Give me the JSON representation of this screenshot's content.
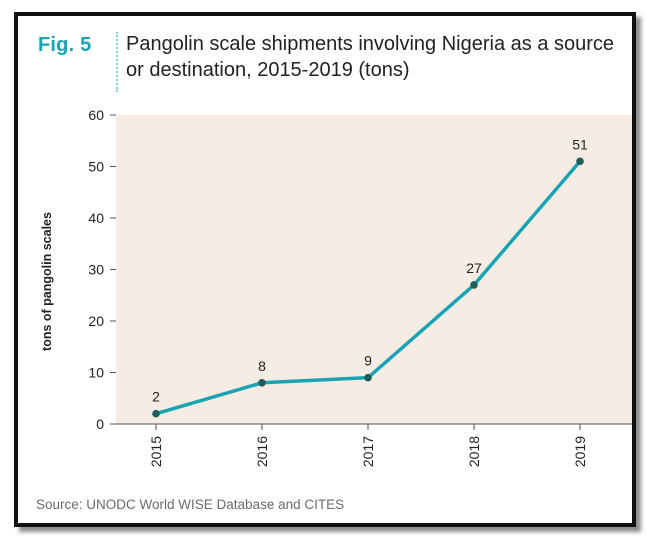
{
  "figure": {
    "label": "Fig. 5",
    "title_line1": "Pangolin scale shipments involving Nigeria as a source",
    "title_line2": "or destination, 2015-2019 (tons)",
    "source": "Source: UNODC World WISE Database and CITES"
  },
  "colors": {
    "line": "#1aa3b5",
    "point": "#1f5e5b",
    "plot_background": "#f6ece3",
    "accent": "#1aa3b5"
  },
  "chart_data": {
    "type": "line",
    "title": "Pangolin scale shipments involving Nigeria as a source or destination, 2015-2019 (tons)",
    "xlabel": "",
    "ylabel": "tons of pangolin scales",
    "categories": [
      "2015",
      "2016",
      "2017",
      "2018",
      "2019"
    ],
    "series": [
      {
        "values": [
          2,
          8,
          9,
          27,
          51
        ]
      }
    ],
    "data_labels": [
      "2",
      "8",
      "9",
      "27",
      "51"
    ],
    "ylim": [
      0,
      60
    ],
    "yticks": [
      0,
      10,
      20,
      30,
      40,
      50,
      60
    ],
    "ytick_labels": [
      "0",
      "10",
      "20",
      "30",
      "40",
      "50",
      "60"
    ],
    "grid": false,
    "legend": "none"
  }
}
